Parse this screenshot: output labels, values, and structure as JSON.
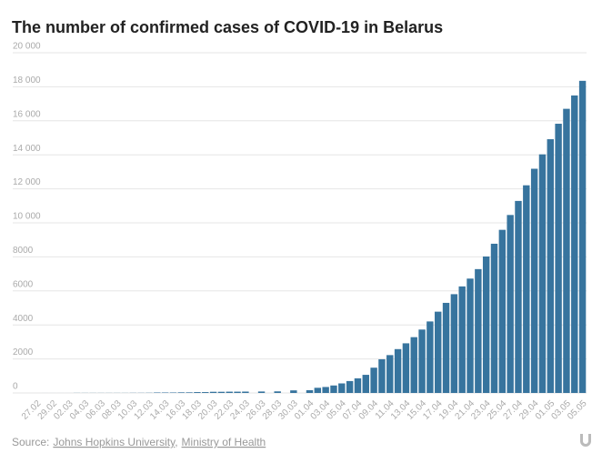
{
  "chart_data": {
    "type": "bar",
    "title": "The number of confirmed cases of COVID-19 in Belarus",
    "categories": [
      "27.02",
      null,
      "29.02",
      null,
      "02.03",
      null,
      "04.03",
      null,
      "06.03",
      null,
      "08.03",
      null,
      "10.03",
      null,
      "12.03",
      null,
      "14.03",
      null,
      "16.03",
      null,
      "18.03",
      null,
      "20.03",
      null,
      "22.03",
      null,
      "24.03",
      null,
      "26.03",
      null,
      "28.03",
      null,
      "30.03",
      null,
      "01.04",
      null,
      "03.04",
      null,
      "05.04",
      null,
      "07.04",
      null,
      "09.04",
      null,
      "11.04",
      null,
      "13.04",
      null,
      "15.04",
      null,
      "17.04",
      null,
      "19.04",
      null,
      "21.04",
      null,
      "23.04",
      null,
      "25.04",
      null,
      "27.04",
      null,
      "29.04",
      null,
      "01.05",
      null,
      "03.05",
      null,
      "05.05"
    ],
    "values": [
      null,
      1,
      1,
      1,
      1,
      6,
      6,
      6,
      6,
      6,
      6,
      6,
      9,
      9,
      12,
      27,
      27,
      27,
      36,
      36,
      51,
      51,
      69,
      69,
      76,
      76,
      81,
      null,
      86,
      null,
      94,
      null,
      152,
      null,
      163,
      304,
      351,
      440,
      562,
      700,
      861,
      1066,
      1486,
      1981,
      2226,
      2578,
      2919,
      3281,
      3728,
      4204,
      4779,
      5297,
      5807,
      6264,
      6723,
      7281,
      8022,
      8773,
      9590,
      10463,
      11289,
      12208,
      13181,
      14027,
      14917,
      15828,
      16705,
      17489,
      18350
    ],
    "color": "#37749e",
    "ylim": [
      0,
      20000
    ],
    "yticks": [
      0,
      2000,
      4000,
      6000,
      8000,
      {
        "value": 10000,
        "label": "10 000"
      },
      {
        "value": 12000,
        "label": "12 000"
      },
      {
        "value": 14000,
        "label": "14 000"
      },
      {
        "value": 16000,
        "label": "16 000"
      },
      {
        "value": 18000,
        "label": "18 000"
      },
      {
        "value": 20000,
        "label": "20 000"
      }
    ],
    "grid": true,
    "source_label": "Source:",
    "sources": [
      "Johns Hopkins University",
      "Ministry of Health"
    ],
    "source_separator": ","
  }
}
